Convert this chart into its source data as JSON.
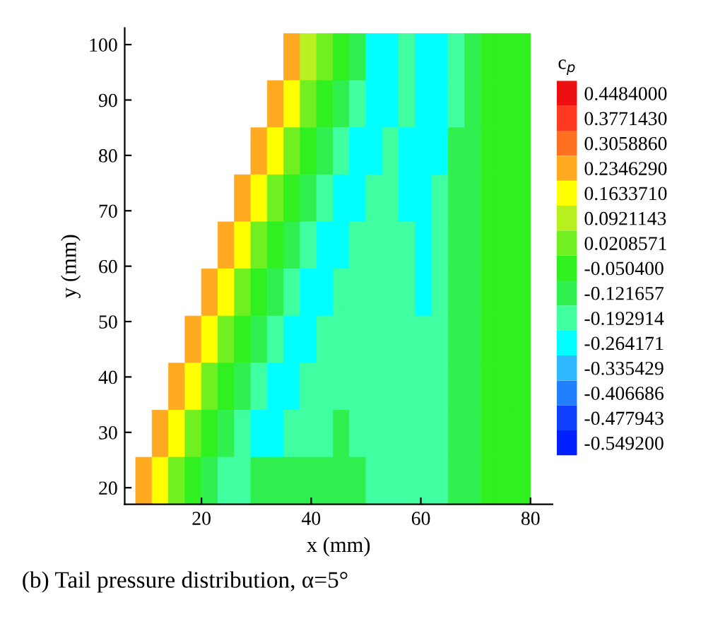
{
  "chart_data": {
    "type": "heatmap",
    "xlabel": "x (mm)",
    "ylabel": "y (mm)",
    "clabel": "c$_{p}$",
    "x": [
      6.5,
      9.5,
      12.5,
      15.5,
      18.5,
      21.5,
      24.5,
      27.5,
      30.5,
      33.5,
      36.5,
      39.5,
      42.5,
      45.5,
      48.5,
      51.5,
      54.5,
      57.5,
      60.5,
      63.5,
      66.5,
      69.5,
      72.5,
      75.5,
      78.5
    ],
    "y": [
      97.75,
      89.25,
      80.75,
      72.25,
      63.75,
      55.25,
      46.75,
      38.25,
      29.75,
      21.25
    ],
    "cells": [
      [
        null,
        null,
        null,
        null,
        null,
        null,
        null,
        null,
        null,
        null,
        0.234629,
        0.0921143,
        0.0208571,
        -0.0504,
        -0.121657,
        -0.264171,
        -0.264171,
        -0.192914,
        -0.264171,
        -0.264171,
        -0.192914,
        -0.121657,
        -0.0504,
        -0.0504,
        -0.0504
      ],
      [
        null,
        null,
        null,
        null,
        null,
        null,
        null,
        null,
        null,
        0.234629,
        0.163371,
        0.0208571,
        -0.0504,
        -0.121657,
        -0.192914,
        -0.264171,
        -0.264171,
        -0.192914,
        -0.264171,
        -0.264171,
        -0.192914,
        -0.121657,
        -0.0504,
        -0.0504,
        -0.0504
      ],
      [
        null,
        null,
        null,
        null,
        null,
        null,
        null,
        null,
        0.234629,
        0.163371,
        0.0208571,
        -0.0504,
        -0.121657,
        -0.192914,
        -0.264171,
        -0.264171,
        -0.192914,
        -0.264171,
        -0.264171,
        -0.264171,
        -0.121657,
        -0.121657,
        -0.0504,
        -0.0504,
        -0.0504
      ],
      [
        null,
        null,
        null,
        null,
        null,
        null,
        null,
        0.234629,
        0.163371,
        0.0208571,
        -0.0504,
        -0.121657,
        -0.192914,
        -0.264171,
        -0.264171,
        -0.192914,
        -0.192914,
        -0.264171,
        -0.264171,
        -0.192914,
        -0.121657,
        -0.121657,
        -0.0504,
        -0.0504,
        -0.0504
      ],
      [
        null,
        null,
        null,
        null,
        null,
        null,
        0.234629,
        0.163371,
        0.0208571,
        -0.0504,
        -0.121657,
        -0.192914,
        -0.264171,
        -0.264171,
        -0.192914,
        -0.192914,
        -0.192914,
        -0.192914,
        -0.264171,
        -0.192914,
        -0.121657,
        -0.121657,
        -0.0504,
        -0.0504,
        -0.0504
      ],
      [
        null,
        null,
        null,
        null,
        null,
        0.234629,
        0.163371,
        0.0208571,
        -0.0504,
        -0.121657,
        -0.192914,
        -0.264171,
        -0.264171,
        -0.192914,
        -0.192914,
        -0.192914,
        -0.192914,
        -0.192914,
        -0.264171,
        -0.192914,
        -0.121657,
        -0.121657,
        -0.0504,
        -0.0504,
        -0.0504
      ],
      [
        null,
        null,
        null,
        null,
        0.234629,
        0.163371,
        0.0208571,
        -0.0504,
        -0.121657,
        -0.192914,
        -0.264171,
        -0.264171,
        -0.192914,
        -0.192914,
        -0.192914,
        -0.192914,
        -0.192914,
        -0.192914,
        -0.192914,
        -0.192914,
        -0.121657,
        -0.121657,
        -0.0504,
        -0.0504,
        -0.0504
      ],
      [
        null,
        null,
        null,
        0.234629,
        0.163371,
        0.0208571,
        -0.0504,
        -0.121657,
        -0.192914,
        -0.264171,
        -0.264171,
        -0.192914,
        -0.192914,
        -0.192914,
        -0.192914,
        -0.192914,
        -0.192914,
        -0.192914,
        -0.192914,
        -0.192914,
        -0.121657,
        -0.121657,
        -0.0504,
        -0.0504,
        -0.0504
      ],
      [
        null,
        null,
        0.234629,
        0.163371,
        0.0208571,
        -0.0504,
        -0.121657,
        -0.192914,
        -0.264171,
        -0.264171,
        -0.192914,
        -0.192914,
        -0.192914,
        -0.121657,
        -0.192914,
        -0.192914,
        -0.192914,
        -0.192914,
        -0.192914,
        -0.192914,
        -0.121657,
        -0.121657,
        -0.0504,
        -0.0504,
        -0.0504
      ],
      [
        null,
        0.234629,
        0.163371,
        0.0208571,
        -0.0504,
        -0.121657,
        -0.192914,
        -0.192914,
        -0.121657,
        -0.121657,
        -0.121657,
        -0.121657,
        -0.121657,
        -0.121657,
        -0.121657,
        -0.192914,
        -0.192914,
        -0.192914,
        -0.192914,
        -0.192914,
        -0.121657,
        -0.121657,
        -0.0504,
        -0.0504,
        -0.0504
      ]
    ],
    "colors": [
      "#0020ff",
      "#1040ff",
      "#2080ff",
      "#30b8ff",
      "#00ffff",
      "#40ffa0",
      "#30f050",
      "#30f020",
      "#70f020",
      "#b8f020",
      "#ffff00",
      "#ffaa20",
      "#ff7020",
      "#ff3a20",
      "#ee1010"
    ],
    "clim": [
      -0.584829,
      0.484029
    ],
    "cticks": [
      {
        "value": 0.4484,
        "label": "0.4484000"
      },
      {
        "value": 0.377143,
        "label": "0.3771430"
      },
      {
        "value": 0.305886,
        "label": "0.3058860"
      },
      {
        "value": 0.234629,
        "label": "0.2346290"
      },
      {
        "value": 0.163371,
        "label": "0.1633710"
      },
      0.0921143,
      {
        "value": 0.0208571,
        "label": "0.0208571"
      },
      {
        "value": -0.0504,
        "label": "-0.050400"
      },
      -0.121657,
      -0.192914,
      -0.264171,
      -0.335429,
      -0.406686,
      -0.477943,
      {
        "value": -0.5492,
        "label": "-0.549200"
      }
    ],
    "xlim": [
      6,
      84
    ],
    "ylim": [
      17,
      103
    ],
    "xticks": [
      20,
      40,
      60,
      80
    ],
    "yticks": [
      20,
      30,
      40,
      50,
      60,
      70,
      80,
      90,
      100
    ],
    "grid": false,
    "annotations": [
      "(b) Tail pressure distribution, α=5°"
    ]
  }
}
